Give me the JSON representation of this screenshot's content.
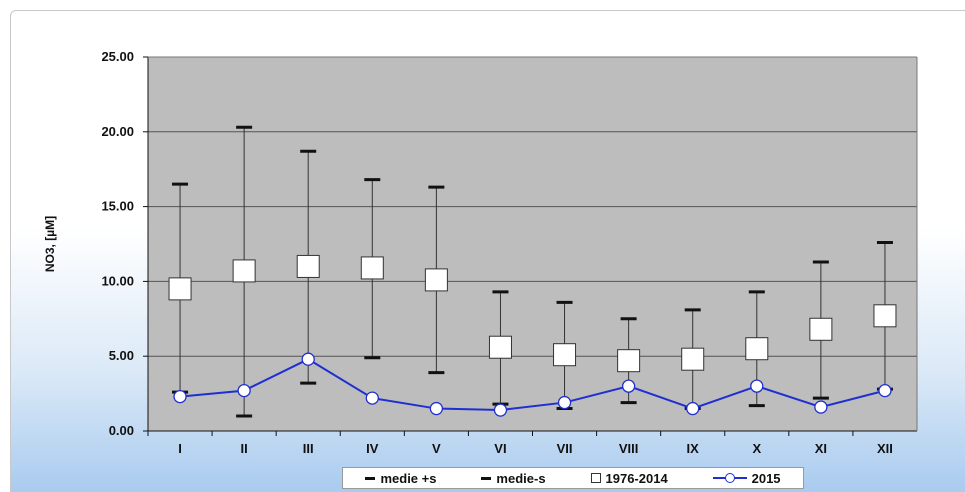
{
  "chart_data": {
    "type": "line",
    "title": "",
    "ylabel": "NO3, [µM]",
    "xlabel": "",
    "ylim": [
      0,
      25
    ],
    "yticks": [
      "0.00",
      "5.00",
      "10.00",
      "15.00",
      "20.00",
      "25.00"
    ],
    "categories": [
      "I",
      "II",
      "III",
      "IV",
      "V",
      "VI",
      "VII",
      "VIII",
      "IX",
      "X",
      "XI",
      "XII"
    ],
    "grid": true,
    "legend_position": "bottom",
    "series": [
      {
        "name": "medie +s",
        "values": [
          16.5,
          20.3,
          18.7,
          16.8,
          16.3,
          9.3,
          8.6,
          7.5,
          8.1,
          9.3,
          11.3,
          12.6
        ],
        "color": "#111111"
      },
      {
        "name": "medie-s",
        "values": [
          2.6,
          1.0,
          3.2,
          4.9,
          3.9,
          1.8,
          1.5,
          1.9,
          1.5,
          1.7,
          2.2,
          2.8
        ],
        "color": "#111111"
      },
      {
        "name": "1976-2014",
        "values": [
          9.5,
          10.7,
          11.0,
          10.9,
          10.1,
          5.6,
          5.1,
          4.7,
          4.8,
          5.5,
          6.8,
          7.7
        ],
        "color": "#ffffff"
      },
      {
        "name": "2015",
        "values": [
          2.3,
          2.7,
          4.8,
          2.2,
          1.5,
          1.4,
          1.9,
          3.0,
          1.5,
          3.0,
          1.6,
          2.7
        ],
        "color": "#1f2fd0"
      }
    ],
    "colors": {
      "plot_background": "#bdbdbd",
      "gridline": "#555555",
      "line_2015": "#1f2fd0"
    }
  }
}
